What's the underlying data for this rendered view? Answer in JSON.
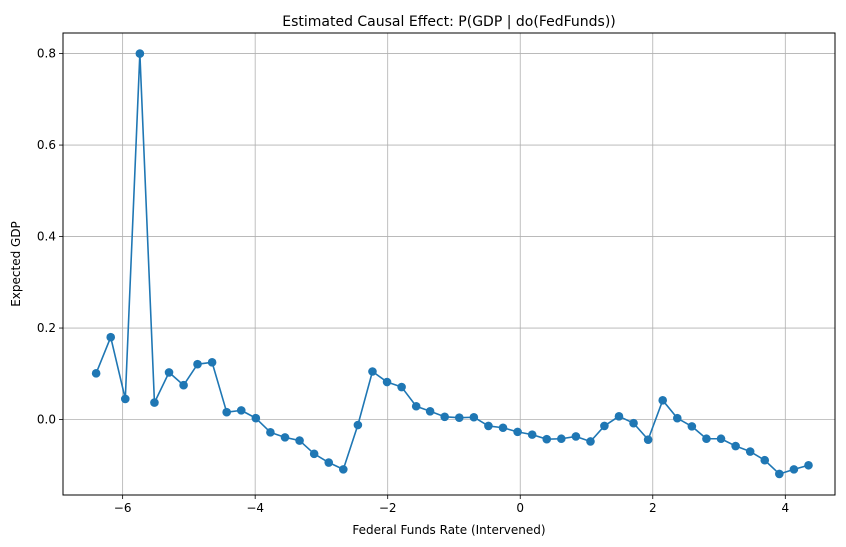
{
  "chart_data": {
    "type": "line",
    "title": "Estimated Causal Effect: P(GDP | do(FedFunds))",
    "xlabel": "Federal Funds Rate (Intervened)",
    "ylabel": "Expected GDP",
    "xlim": [
      -6.9,
      4.75
    ],
    "ylim": [
      -0.165,
      0.845
    ],
    "xticks": [
      -6,
      -4,
      -2,
      0,
      2,
      4
    ],
    "xtick_labels": [
      "−6",
      "−4",
      "−2",
      "0",
      "2",
      "4"
    ],
    "yticks": [
      0.0,
      0.2,
      0.4,
      0.6,
      0.8
    ],
    "ytick_labels": [
      "0.0",
      "0.2",
      "0.4",
      "0.6",
      "0.8"
    ],
    "grid": true,
    "series": [
      {
        "color": "#1f77b4",
        "marker": "circle",
        "x": [
          -6.4,
          -6.18,
          -5.96,
          -5.74,
          -5.52,
          -5.3,
          -5.08,
          -4.87,
          -4.65,
          -4.43,
          -4.21,
          -3.99,
          -3.77,
          -3.55,
          -3.33,
          -3.11,
          -2.89,
          -2.67,
          -2.45,
          -2.23,
          -2.01,
          -1.79,
          -1.57,
          -1.36,
          -1.14,
          -0.92,
          -0.7,
          -0.48,
          -0.26,
          -0.04,
          0.18,
          0.4,
          0.62,
          0.84,
          1.06,
          1.27,
          1.49,
          1.71,
          1.93,
          2.15,
          2.37,
          2.59,
          2.81,
          3.03,
          3.25,
          3.47,
          3.69,
          3.91,
          4.13,
          4.35
        ],
        "y": [
          0.101,
          0.18,
          0.045,
          0.8,
          0.037,
          0.103,
          0.075,
          0.121,
          0.125,
          0.016,
          0.02,
          0.003,
          -0.028,
          -0.039,
          -0.046,
          -0.075,
          -0.094,
          -0.109,
          -0.012,
          0.105,
          0.082,
          0.071,
          0.029,
          0.018,
          0.006,
          0.004,
          0.005,
          -0.014,
          -0.018,
          -0.027,
          -0.033,
          -0.043,
          -0.042,
          -0.037,
          -0.048,
          -0.014,
          0.007,
          -0.008,
          -0.044,
          0.042,
          0.003,
          -0.015,
          -0.042,
          -0.042,
          -0.058,
          -0.07,
          -0.089,
          -0.119,
          -0.109,
          -0.1
        ]
      }
    ]
  }
}
